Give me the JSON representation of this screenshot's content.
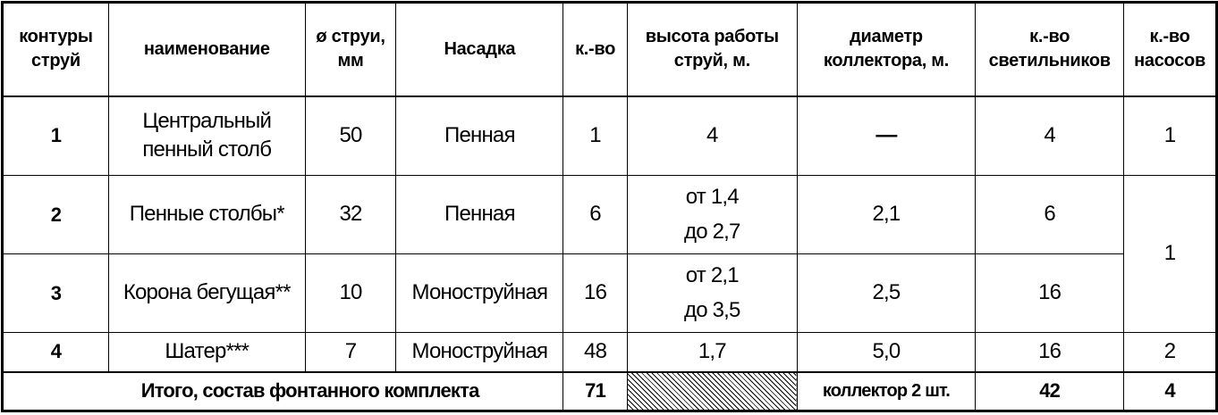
{
  "headers": [
    "контуры струй",
    "наименование",
    "ø струи, мм",
    "Насадка",
    "к.-во",
    "высота работы струй, м.",
    "диаметр коллектора, м.",
    "к.-во светильников",
    "к.-во насосов"
  ],
  "rows": [
    {
      "contour": "1",
      "name": "Центральный пенный столб",
      "diameter": "50",
      "nozzle": "Пенная",
      "qty": "1",
      "height": "4",
      "collector": "—",
      "lights": "4",
      "pumps": "1"
    },
    {
      "contour": "2",
      "name": "Пенные столбы*",
      "diameter": "32",
      "nozzle": "Пенная",
      "qty": "6",
      "height": "от 1,4 до 2,7",
      "collector": "2,1",
      "lights": "6",
      "pumps": "1"
    },
    {
      "contour": "3",
      "name": "Корона бегущая**",
      "diameter": "10",
      "nozzle": "Моноструйная",
      "qty": "16",
      "height": "от 2,1 до 3,5",
      "collector": "2,5",
      "lights": "16"
    },
    {
      "contour": "4",
      "name": "Шатер***",
      "diameter": "7",
      "nozzle": "Моноструйная",
      "qty": "48",
      "height": "1,7",
      "collector": "5,0",
      "lights": "16",
      "pumps": "2"
    }
  ],
  "total": {
    "label": "Итого, состав фонтанного комплекта",
    "qty": "71",
    "collector": "коллектор 2 шт.",
    "lights": "42",
    "pumps": "4"
  }
}
